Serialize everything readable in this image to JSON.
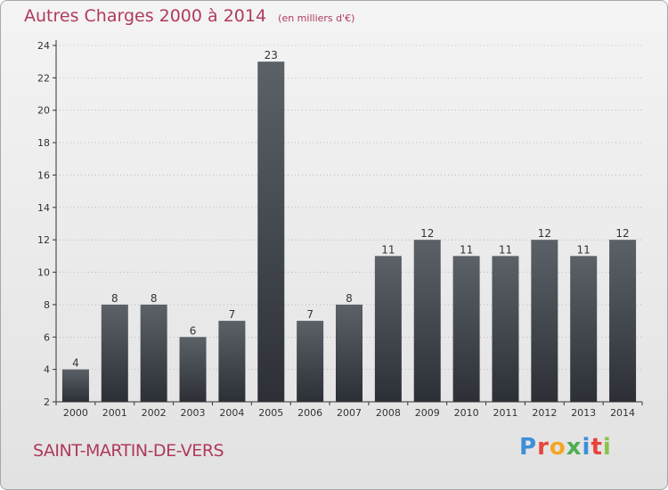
{
  "title": "Autres Charges 2000 à 2014",
  "subtitle": "(en milliers d'€)",
  "commune": "SAINT-MARTIN-DE-VERS",
  "brand": {
    "letters": [
      "P",
      "r",
      "o",
      "x",
      "i",
      "t",
      "i"
    ],
    "colors": [
      "#3c8fd8",
      "#e8443a",
      "#f5a623",
      "#4caf50",
      "#3c8fd8",
      "#e8443a",
      "#8bc34a"
    ]
  },
  "colors": {
    "bar_top": "#5c6168",
    "bar_bottom": "#2c3036",
    "accent": "#b03a5b",
    "grid": "#999999"
  },
  "chart_data": {
    "type": "bar",
    "categories": [
      "2000",
      "2001",
      "2002",
      "2003",
      "2004",
      "2005",
      "2006",
      "2007",
      "2008",
      "2009",
      "2010",
      "2011",
      "2012",
      "2013",
      "2014"
    ],
    "values": [
      4,
      8,
      8,
      6,
      7,
      23,
      7,
      8,
      11,
      12,
      11,
      11,
      12,
      11,
      12
    ],
    "data_labels": [
      "4",
      "8",
      "8",
      "6",
      "7",
      "23",
      "7",
      "8",
      "11",
      "12",
      "11",
      "11",
      "12",
      "11",
      "12"
    ],
    "title": "Autres Charges 2000 à 2014",
    "xlabel": "",
    "ylabel": "",
    "ylim": [
      2,
      24
    ],
    "yticks": [
      2,
      4,
      6,
      8,
      10,
      12,
      14,
      16,
      18,
      20,
      22,
      24
    ],
    "grid": true,
    "legend": "none"
  }
}
